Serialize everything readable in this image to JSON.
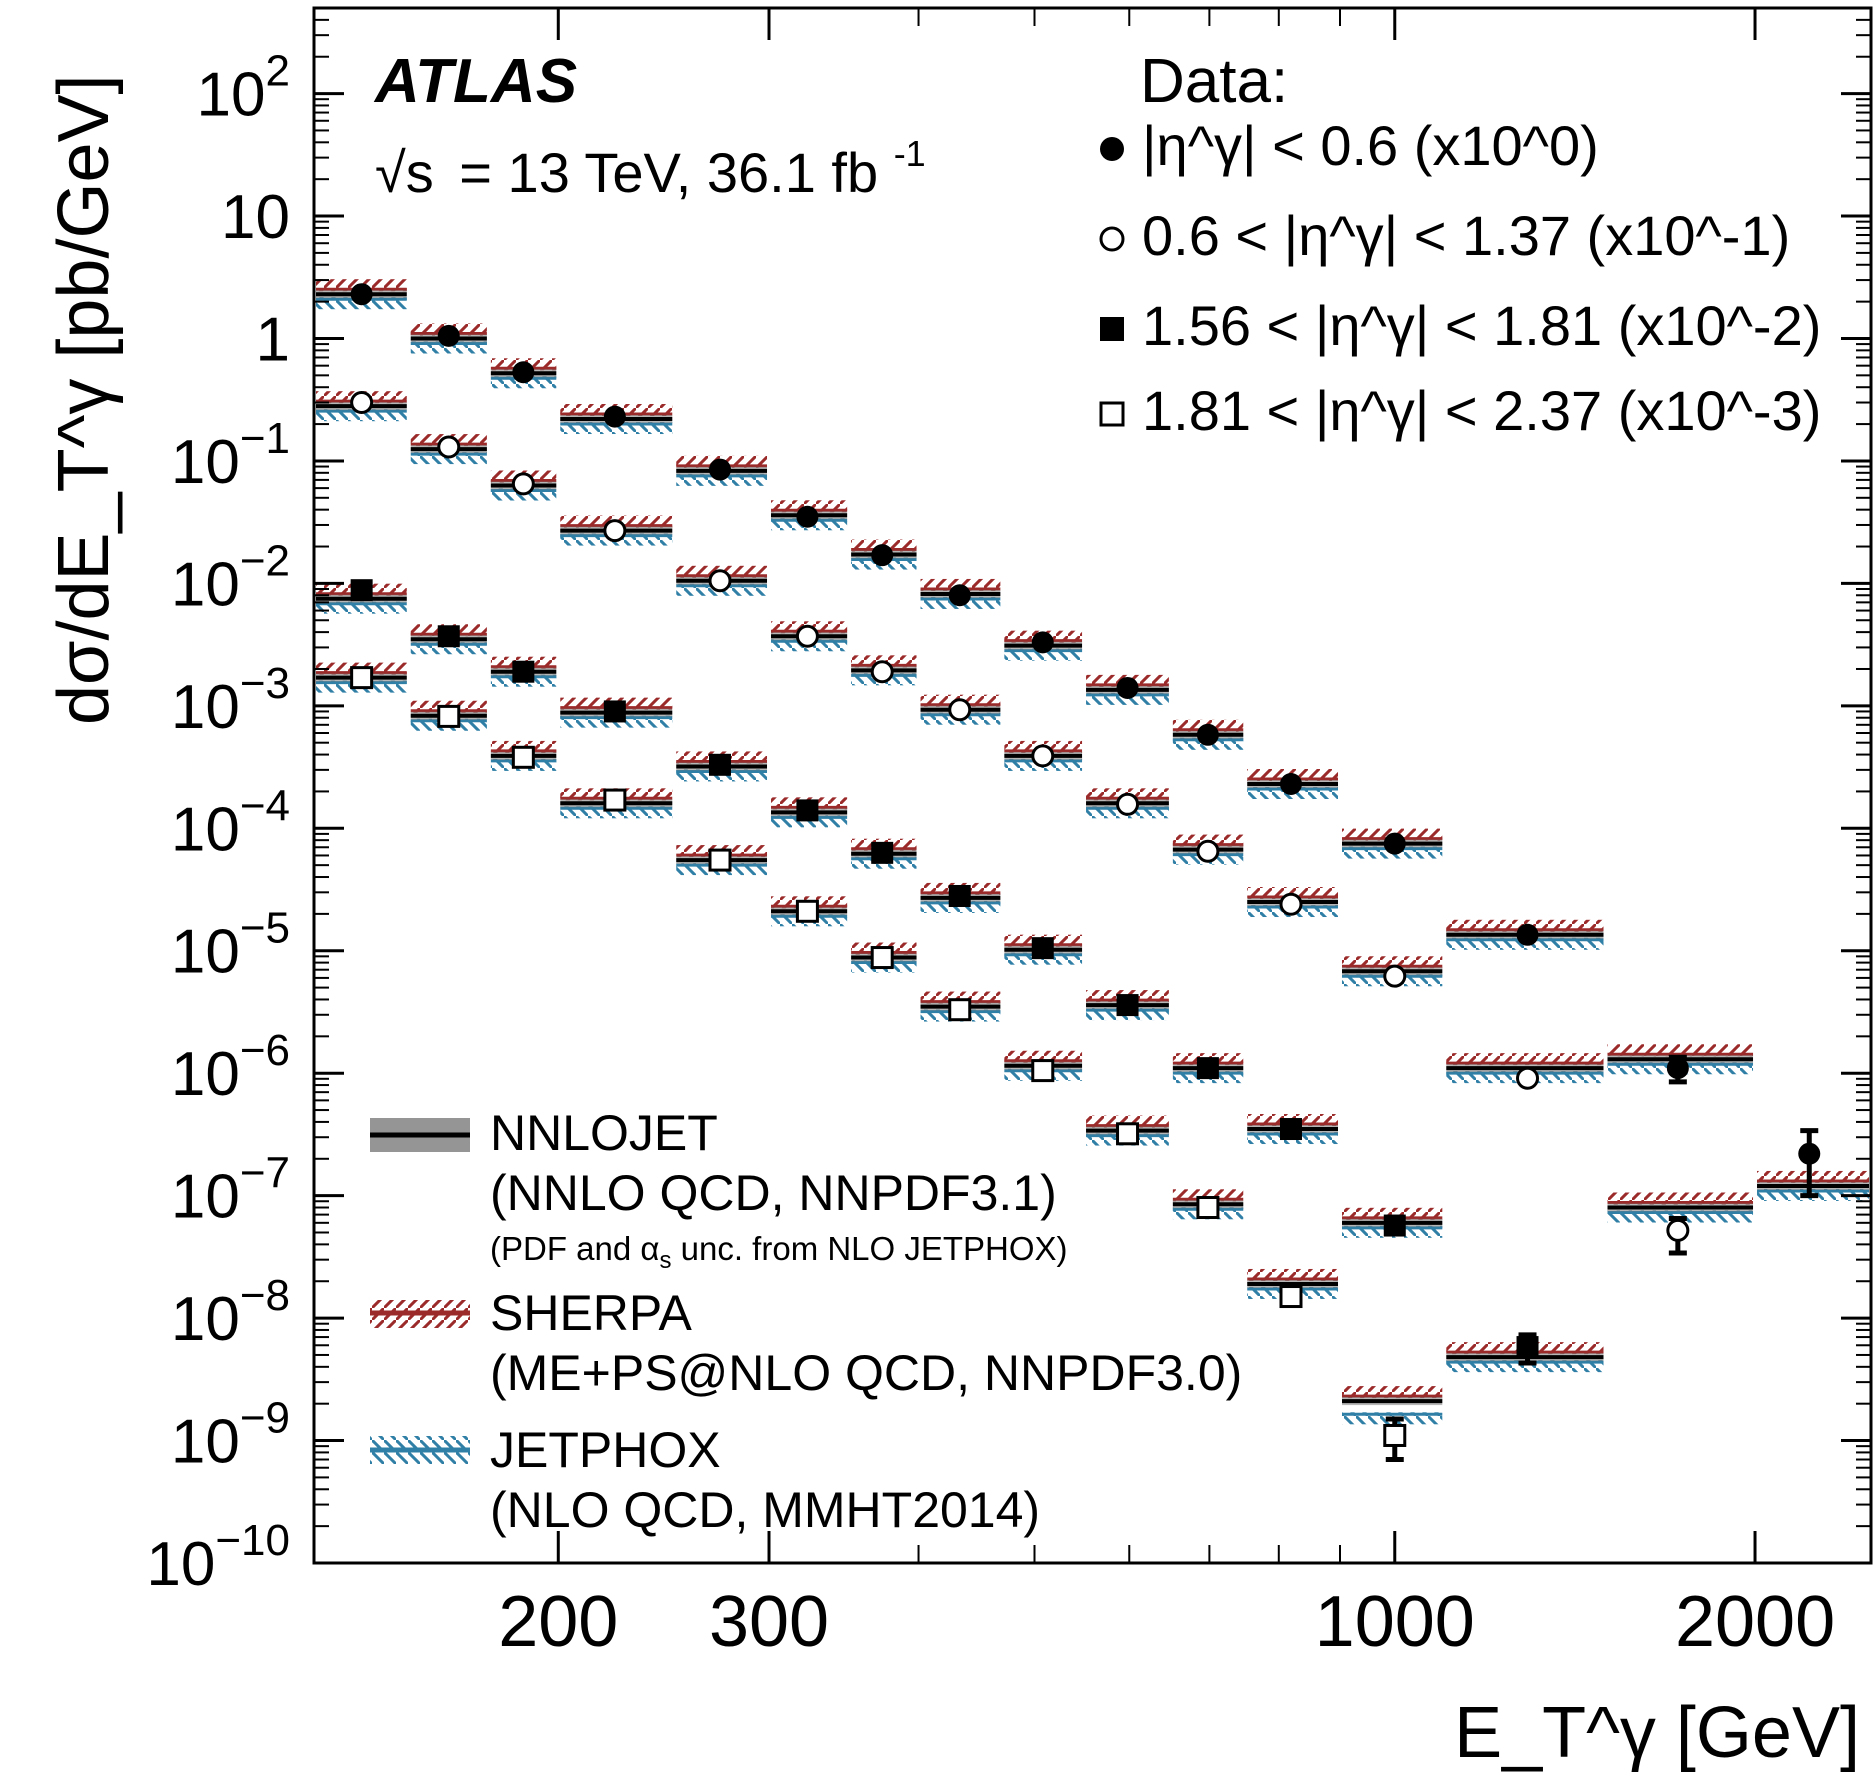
{
  "chart_data": {
    "type": "scatter",
    "log_x": true,
    "log_y": true,
    "xlim": [
      125,
      2500
    ],
    "ylim": [
      1e-10,
      500
    ],
    "grid": false,
    "ylabel": "dσ/dE_T^γ [pb/GeV]",
    "xlabel": "E_T^γ [GeV]",
    "x_tick_labels": [
      "200",
      "300",
      "1000",
      "2000"
    ],
    "y_tick_labels": [
      {
        "base": "10",
        "exp": "2"
      },
      {
        "base": "10",
        "exp": ""
      },
      {
        "base": "1",
        "exp": ""
      },
      {
        "base": "10",
        "exp": "−1"
      },
      {
        "base": "10",
        "exp": "−2"
      },
      {
        "base": "10",
        "exp": "−3"
      },
      {
        "base": "10",
        "exp": "−4"
      },
      {
        "base": "10",
        "exp": "−5"
      },
      {
        "base": "10",
        "exp": "−6"
      },
      {
        "base": "10",
        "exp": "−7"
      },
      {
        "base": "10",
        "exp": "−8"
      },
      {
        "base": "10",
        "exp": "−9"
      },
      {
        "base": "10",
        "exp": "−10"
      }
    ],
    "experiment": "ATLAS",
    "energy_text": "= 13 TeV, 36.1 fb",
    "energy_sup": "-1",
    "energy_prefix": "√s",
    "legend_data_title": "Data:",
    "legend_position": "top-right",
    "model_legend_position": "bottom-left",
    "bins": [
      [
        125,
        150
      ],
      [
        150,
        175
      ],
      [
        175,
        200
      ],
      [
        200,
        250
      ],
      [
        250,
        300
      ],
      [
        300,
        350
      ],
      [
        350,
        400
      ],
      [
        400,
        470
      ],
      [
        470,
        550
      ],
      [
        550,
        650
      ],
      [
        650,
        750
      ],
      [
        750,
        900
      ],
      [
        900,
        1100
      ],
      [
        1100,
        1500
      ],
      [
        1500,
        2000
      ],
      [
        2000,
        2500
      ]
    ],
    "series": [
      {
        "name": "|η^γ| < 0.6 (x10^0)",
        "marker": "filled-circle",
        "x": [
          137,
          162,
          187,
          223,
          273,
          323,
          373,
          433,
          508,
          598,
          698,
          819,
          1000,
          1291,
          1724,
          2220
        ],
        "y": [
          2.3,
          1.05,
          0.53,
          0.23,
          0.085,
          0.035,
          0.017,
          0.008,
          0.0033,
          0.0014,
          0.00058,
          0.00023,
          7.5e-05,
          1.35e-05,
          1.1e-06,
          2.2e-07
        ],
        "yerr_low": [
          0,
          0,
          0,
          0,
          0,
          0,
          0,
          0,
          0,
          0,
          0,
          0,
          0,
          0,
          2.5e-07,
          1.2e-07
        ],
        "yerr_high": [
          0,
          0,
          0,
          0,
          0,
          0,
          0,
          0,
          0,
          0,
          0,
          0,
          0,
          0,
          2.5e-07,
          1.2e-07
        ],
        "pred": [
          2.3,
          1.0,
          0.52,
          0.22,
          0.083,
          0.036,
          0.0172,
          0.0082,
          0.0031,
          0.00135,
          0.00058,
          0.00023,
          7.5e-05,
          1.35e-05,
          1.3e-06,
          1.2e-07
        ]
      },
      {
        "name": "0.6 < |η^γ| < 1.37 (x10^-1)",
        "marker": "open-circle",
        "x": [
          137,
          162,
          187,
          223,
          273,
          323,
          373,
          433,
          508,
          598,
          698,
          819,
          1000,
          1291,
          1724
        ],
        "y": [
          0.3,
          0.13,
          0.065,
          0.027,
          0.0105,
          0.0037,
          0.0019,
          0.00093,
          0.00039,
          0.000157,
          6.5e-05,
          2.4e-05,
          6.2e-06,
          9.1e-07,
          5.2e-08
        ],
        "yerr_low": [
          0,
          0,
          0,
          0,
          0,
          0,
          0,
          0,
          0,
          0,
          0,
          0,
          0,
          0,
          1.8e-08
        ],
        "yerr_high": [
          0,
          0,
          0,
          0,
          0,
          0,
          0,
          0,
          0,
          0,
          0,
          0,
          0,
          0,
          1.3e-08
        ],
        "pred": [
          0.28,
          0.125,
          0.063,
          0.027,
          0.0105,
          0.0037,
          0.00195,
          0.00093,
          0.00039,
          0.00016,
          6.7e-05,
          2.5e-05,
          6.8e-06,
          1.1e-06,
          8e-08
        ]
      },
      {
        "name": "1.56 < |η^γ| < 1.81 (x10^-2)",
        "marker": "filled-square",
        "x": [
          137,
          162,
          187,
          223,
          273,
          323,
          373,
          433,
          508,
          598,
          698,
          819,
          1000,
          1291
        ],
        "y": [
          0.0088,
          0.0037,
          0.0019,
          0.0009,
          0.00033,
          0.00014,
          6.3e-05,
          2.8e-05,
          1.05e-05,
          3.6e-06,
          1.1e-06,
          3.5e-07,
          5.7e-08,
          5.8e-09
        ],
        "yerr_low": [
          0,
          0,
          0,
          0,
          0,
          0,
          0,
          0,
          0,
          0,
          0,
          0,
          0,
          1.5e-09
        ],
        "yerr_high": [
          0,
          0,
          0,
          0,
          0,
          0,
          0,
          0,
          0,
          0,
          0,
          0,
          0,
          1.5e-09
        ],
        "pred": [
          0.0075,
          0.0035,
          0.0019,
          0.00088,
          0.00032,
          0.000135,
          6.2e-05,
          2.7e-05,
          1.02e-05,
          3.6e-06,
          1.1e-06,
          3.5e-07,
          6e-08,
          4.8e-09
        ]
      },
      {
        "name": "1.81 < |η^γ| < 2.37 (x10^-3)",
        "marker": "open-square",
        "x": [
          137,
          162,
          187,
          223,
          273,
          323,
          373,
          433,
          508,
          598,
          698,
          819,
          1000
        ],
        "y": [
          0.0017,
          0.00082,
          0.00038,
          0.00017,
          5.5e-05,
          2.1e-05,
          8.8e-06,
          3.3e-06,
          1.05e-06,
          3.2e-07,
          8e-08,
          1.5e-08,
          1.1e-09
        ],
        "yerr_low": [
          0,
          0,
          0,
          0,
          0,
          0,
          0,
          0,
          0,
          0,
          0,
          0,
          4e-10
        ],
        "yerr_high": [
          0,
          0,
          0,
          0,
          0,
          0,
          0,
          0,
          0,
          0,
          0,
          0,
          4e-10
        ],
        "pred": [
          0.0017,
          0.00083,
          0.00039,
          0.00016,
          5.5e-05,
          2.1e-05,
          8.8e-06,
          3.5e-06,
          1.15e-06,
          3.4e-07,
          8.5e-08,
          1.9e-08,
          2.1e-09
        ]
      }
    ],
    "models": [
      {
        "name": "NNLOJET",
        "description": "(NNLO QCD, NNPDF3.1)",
        "note_prefix": "(PDF and ",
        "note_alpha": "α",
        "note_sub": "s",
        "note_suffix": " unc. from NLO JETPHOX)",
        "color": "#000000",
        "band_color": "#7a7a7a"
      },
      {
        "name": "SHERPA",
        "description": "(ME+PS@NLO QCD, NNPDF3.0)",
        "color": "#9b2a2a"
      },
      {
        "name": "JETPHOX",
        "description": "(NLO QCD, MMHT2014)",
        "color": "#2f7fa6"
      }
    ]
  }
}
